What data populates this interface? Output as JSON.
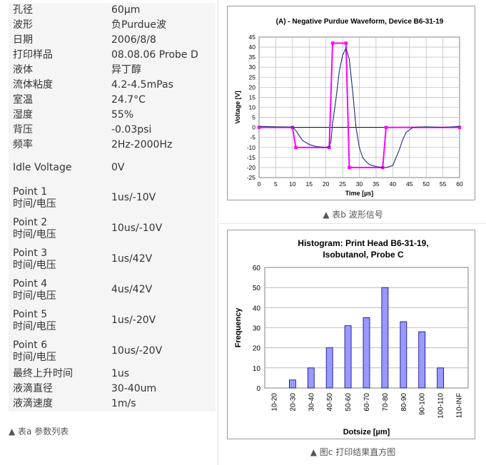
{
  "params": [
    {
      "name": "孔径",
      "value": "60µm",
      "type": "single"
    },
    {
      "name": "波形",
      "value": "负Purdue波",
      "type": "single"
    },
    {
      "name": "日期",
      "value": "2006/8/8",
      "type": "single"
    },
    {
      "name": "打印样品",
      "value": "08.08.06 Probe D",
      "type": "single"
    },
    {
      "name": "液体",
      "value": "异丁醇",
      "type": "single"
    },
    {
      "name": "流体粘度",
      "value": "4.2-4.5mPas",
      "type": "single"
    },
    {
      "name": "室温",
      "value": "24.7°C",
      "type": "single"
    },
    {
      "name": "湿度",
      "value": "55%",
      "type": "single"
    },
    {
      "name": "背压",
      "value": "-0.03psi",
      "type": "single"
    },
    {
      "name": "频率",
      "value": "2Hz-2000Hz",
      "type": "single"
    },
    {
      "name": "Idle Voltage",
      "value": "0V",
      "type": "idle"
    },
    {
      "name": "Point 1",
      "name2": "时间/电压",
      "value": "1us/-10V",
      "type": "double"
    },
    {
      "name": "Point 2",
      "name2": "时间/电压",
      "value": "10us/-10V",
      "type": "double"
    },
    {
      "name": "Point 3",
      "name2": "时间/电压",
      "value": "1us/42V",
      "type": "double"
    },
    {
      "name": "Point 4",
      "name2": "时间/电压",
      "value": "4us/42V",
      "type": "double"
    },
    {
      "name": "Point 5",
      "name2": "时间/电压",
      "value": "1us/-20V",
      "type": "double"
    },
    {
      "name": "Point 6",
      "name2": "时间/电压",
      "value": "10us/-20V",
      "type": "double"
    },
    {
      "name": "最终上升时间",
      "value": "1us",
      "type": "single"
    },
    {
      "name": "液滴直径",
      "value": "30-40um",
      "type": "single"
    },
    {
      "name": "液滴速度",
      "value": "1m/s",
      "type": "single"
    }
  ],
  "captions": {
    "table": "▲ 表a 参数列表",
    "waveform": "▲ 表b 波形信号",
    "histogram": "▲ 图c 打印结果直方图"
  },
  "chart_data": [
    {
      "type": "line",
      "title": "(A) - Negative Purdue Waveform, Device B6-31-19",
      "xlabel": "Time [µs]",
      "ylabel": "Voltage [V]",
      "xlim": [
        0,
        60
      ],
      "ylim": [
        -25,
        45
      ],
      "xticks": [
        0,
        5,
        10,
        15,
        20,
        25,
        30,
        35,
        40,
        45,
        50,
        55,
        60
      ],
      "yticks": [
        45,
        40,
        35,
        30,
        25,
        20,
        15,
        10,
        5,
        0,
        -5,
        -10,
        -15,
        -20,
        -25
      ],
      "grid": true,
      "series": [
        {
          "color": "#ff00ff",
          "marker": "square",
          "x": [
            0,
            10,
            11,
            21,
            22,
            26,
            27,
            37,
            38,
            60
          ],
          "y": [
            0,
            0,
            -10,
            -10,
            42,
            42,
            -20,
            -20,
            0,
            0
          ]
        },
        {
          "color": "#1f2a7a",
          "marker": "none",
          "x": [
            0,
            5,
            10,
            11,
            12,
            13,
            15,
            17,
            20,
            21,
            21.5,
            22,
            23,
            24,
            25,
            26,
            27,
            28,
            29,
            30,
            31,
            32,
            33,
            35,
            37,
            38,
            40,
            41,
            42,
            43,
            44,
            46,
            50,
            55,
            60
          ],
          "y": [
            0.5,
            0.3,
            0.2,
            -1.5,
            -4,
            -6.5,
            -8.5,
            -9.5,
            -10,
            -9.5,
            -7,
            2,
            14,
            28,
            36,
            39.5,
            34,
            18,
            0,
            -10,
            -15,
            -17,
            -18.5,
            -19.5,
            -20,
            -20,
            -19,
            -15,
            -11,
            -6,
            -2.5,
            0,
            0.3,
            0,
            0.5
          ]
        }
      ]
    },
    {
      "type": "bar",
      "title": "Histogram: Print Head B6-31-19,",
      "subtitle": "Isobutanol, Probe C",
      "xlabel": "Dotsize [µm]",
      "ylabel": "Frequency",
      "ylim": [
        0,
        60
      ],
      "yticks": [
        0,
        10,
        20,
        30,
        40,
        50,
        60
      ],
      "grid": true,
      "bar_color": "#9999ff",
      "categories": [
        "10-20",
        "20-30",
        "30-40",
        "40-50",
        "50-60",
        "60-70",
        "70-80",
        "80-90",
        "90-100",
        "100-110",
        "110-INF"
      ],
      "values": [
        0,
        4,
        10,
        20,
        31,
        35,
        50,
        33,
        28,
        10,
        0
      ]
    }
  ]
}
